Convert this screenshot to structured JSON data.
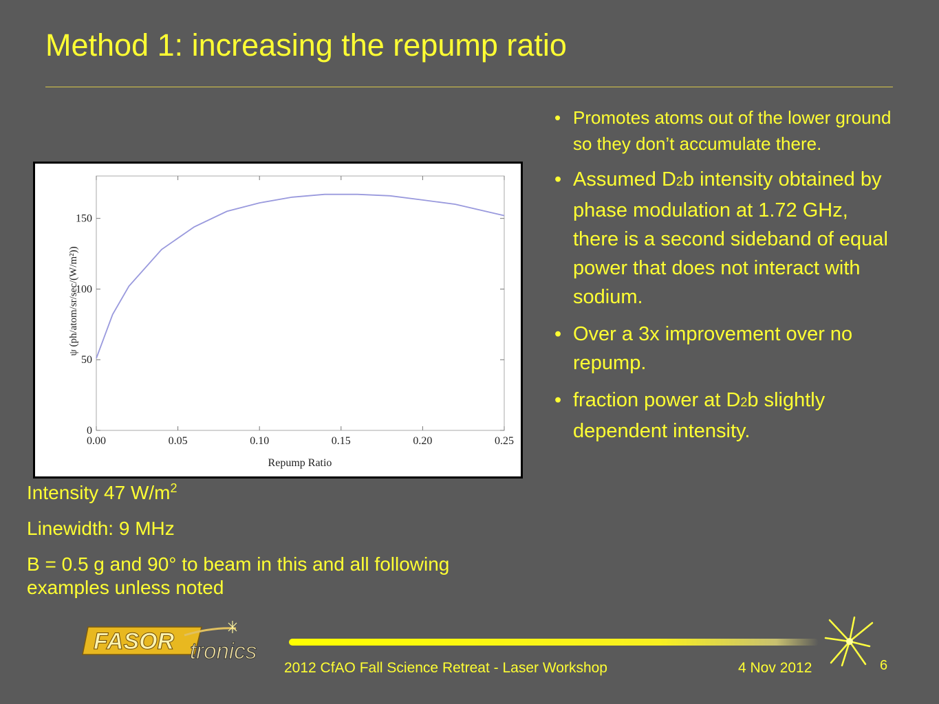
{
  "slide": {
    "title": "Method 1: increasing the repump ratio"
  },
  "chart_data": {
    "type": "line",
    "xlabel": "Repump Ratio",
    "ylabel": "ψ (ph/atom/sr/sec/(W/m²))",
    "xlim": [
      0,
      0.25
    ],
    "ylim": [
      0,
      180
    ],
    "x_ticks": [
      "0.00",
      "0.05",
      "0.10",
      "0.15",
      "0.20",
      "0.25"
    ],
    "y_ticks": [
      "0",
      "50",
      "100",
      "150"
    ],
    "grid": false,
    "series": [
      {
        "color": "#9999dd",
        "x": [
          0.0,
          0.01,
          0.02,
          0.04,
          0.06,
          0.08,
          0.1,
          0.12,
          0.14,
          0.16,
          0.18,
          0.2,
          0.22,
          0.25
        ],
        "y": [
          51,
          82,
          102,
          128,
          144,
          155,
          161,
          165,
          167,
          167,
          166,
          163,
          160,
          152
        ]
      }
    ]
  },
  "notes": {
    "intensity_text": "Intensity 47 W/m",
    "intensity_sup": "2",
    "linewidth": "Linewidth: 9 MHz",
    "field": "B = 0.5 g and 90° to beam in this and all following examples unless noted"
  },
  "bullets": {
    "marker": "•",
    "b1": "Promotes atoms out of the lower ground so they don’t accumulate there.",
    "b2_pre": "Assumed D",
    "b2_sub": "2",
    "b2_post": "b intensity obtained by phase modulation at 1.72 GHz, there is a second sideband of equal power that does not interact with sodium.",
    "b3": "Over a 3x improvement over no repump.",
    "b4_pre": "fraction power at D",
    "b4_sub": "2",
    "b4_post": "b slightly dependent intensity."
  },
  "footer": {
    "logo_part1": "FASOR",
    "logo_part2": "tronics",
    "event": "2012 CfAO Fall Science Retreat - Laser Workshop",
    "date": "4 Nov 2012",
    "page_number": "6",
    "colors": {
      "accent": "#ffff33",
      "background": "#5a5a5a",
      "logo_gold": "#f0c020"
    }
  }
}
